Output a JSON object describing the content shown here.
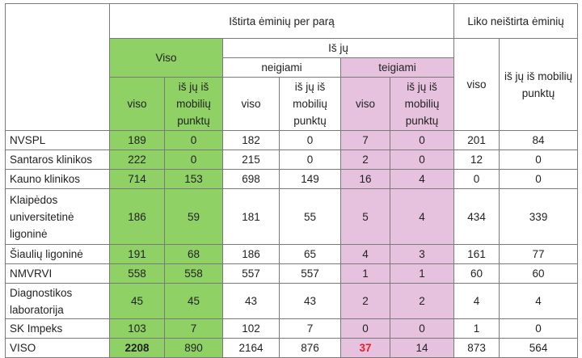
{
  "headers": {
    "tested": "Ištirta ėminių per parą",
    "remaining": "Liko neištirta ėminių",
    "total": "Viso",
    "of_which": "Iš jų",
    "negative": "neigiami",
    "positive": "teigiami",
    "col_viso": "viso",
    "col_mobile": "iš jų iš mobilių punktų",
    "col_viso_rem": "viso"
  },
  "rows": [
    {
      "label": "NVSPL",
      "viso": "189",
      "viso_mob": "0",
      "neg": "182",
      "neg_mob": "0",
      "pos": "7",
      "pos_mob": "0",
      "rem": "201",
      "rem_mob": "84"
    },
    {
      "label": "Santaros klinikos",
      "viso": "222",
      "viso_mob": "0",
      "neg": "215",
      "neg_mob": "0",
      "pos": "2",
      "pos_mob": "0",
      "rem": "12",
      "rem_mob": "0"
    },
    {
      "label": "Kauno klinikos",
      "viso": "714",
      "viso_mob": "153",
      "neg": "698",
      "neg_mob": "149",
      "pos": "16",
      "pos_mob": "4",
      "rem": "0",
      "rem_mob": "0"
    },
    {
      "label": "Klaipėdos universitetinė ligoninė",
      "viso": "186",
      "viso_mob": "59",
      "neg": "181",
      "neg_mob": "55",
      "pos": "5",
      "pos_mob": "4",
      "rem": "434",
      "rem_mob": "339"
    },
    {
      "label": "Šiaulių ligoninė",
      "viso": "191",
      "viso_mob": "68",
      "neg": "186",
      "neg_mob": "65",
      "pos": "4",
      "pos_mob": "3",
      "rem": "161",
      "rem_mob": "77"
    },
    {
      "label": "NMVRVI",
      "viso": "558",
      "viso_mob": "558",
      "neg": "557",
      "neg_mob": "557",
      "pos": "1",
      "pos_mob": "1",
      "rem": "60",
      "rem_mob": "60"
    },
    {
      "label": "Diagnostikos laboratorija",
      "viso": "45",
      "viso_mob": "45",
      "neg": "43",
      "neg_mob": "43",
      "pos": "2",
      "pos_mob": "2",
      "rem": "4",
      "rem_mob": "4"
    },
    {
      "label": "SK Impeks",
      "viso": "103",
      "viso_mob": "7",
      "neg": "102",
      "neg_mob": "7",
      "pos": "0",
      "pos_mob": "0",
      "rem": "1",
      "rem_mob": "0"
    },
    {
      "label": "VISO",
      "viso": "2208",
      "viso_mob": "890",
      "neg": "2164",
      "neg_mob": "876",
      "pos": "37",
      "pos_mob": "14",
      "rem": "873",
      "rem_mob": "564"
    }
  ],
  "colors": {
    "total_fill": "#8fd165",
    "positive_fill": "#e6c2de",
    "highlight_text": "#e8202a",
    "border": "#7a7a7a"
  }
}
